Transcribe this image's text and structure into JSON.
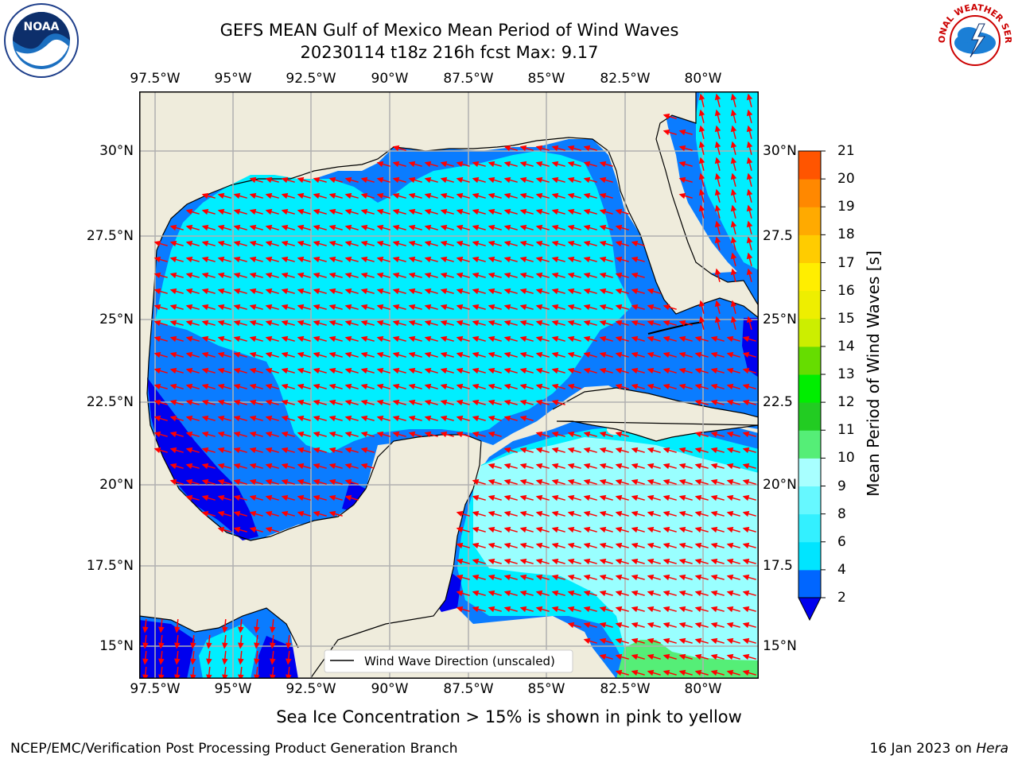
{
  "header": {
    "title_line1": "GEFS MEAN Gulf of Mexico Mean Period of Wind Waves",
    "title_line2": "20230114 t18z 216h fcst   Max: 9.17"
  },
  "axes": {
    "lon_labels": [
      "97.5°W",
      "95°W",
      "92.5°W",
      "90°W",
      "87.5°W",
      "85°W",
      "82.5°W",
      "80°W"
    ],
    "lat_labels": [
      "30°N",
      "27.5°N",
      "25°N",
      "22.5°N",
      "20°N",
      "17.5°N",
      "15°N"
    ],
    "lat_labels_right": [
      "30°N",
      "27.5",
      "25°N",
      "22.5",
      "20°N",
      "17.5",
      "15°N"
    ]
  },
  "legend": {
    "line_label": "Wind Wave Direction (unscaled)"
  },
  "colorbar": {
    "title": "Mean Period of Wind Waves [s]",
    "ticks": [
      "2",
      "4",
      "6",
      "8",
      "9",
      "10",
      "11",
      "12",
      "13",
      "14",
      "15",
      "16",
      "17",
      "18",
      "19",
      "20",
      "21"
    ],
    "colors": [
      "#0066ff",
      "#00e5ff",
      "#33f0ff",
      "#66f8ff",
      "#a8ffff",
      "#55ee77",
      "#22cc22",
      "#00ee00",
      "#66dd00",
      "#ccee00",
      "#eeee00",
      "#ffee00",
      "#ffcc00",
      "#ffaa00",
      "#ff8800",
      "#ff5500",
      "#ff2200",
      "#ff0000"
    ],
    "extend_color": "#0000ee"
  },
  "map_colors": {
    "land": "#efecdc",
    "deep_blue": "#0000ee",
    "blue": "#0a7cff",
    "cyan": "#00eeff",
    "light_cyan": "#99ffff",
    "green": "#55ee77",
    "arrow": "#ff0000"
  },
  "note": "Sea Ice Concentration > 15% is shown in pink to yellow",
  "footer": {
    "left": "NCEP/EMC/Verification Post Processing Product Generation Branch",
    "date": "16 Jan 2023 on",
    "host": "Hera"
  },
  "logos": {
    "left": "NOAA",
    "right": "NATIONAL WEATHER SERVICE"
  }
}
